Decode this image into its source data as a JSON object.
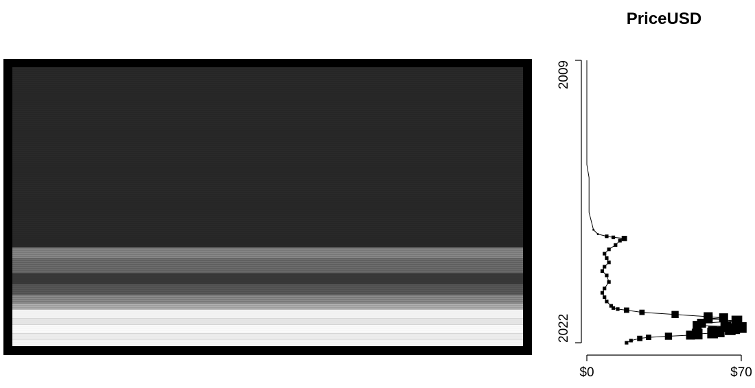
{
  "chart_data": {
    "type": "heatmap",
    "title": "PriceUSD",
    "xlabel": "",
    "ylabel": "",
    "x_ticks": [
      "$0",
      "$70"
    ],
    "xlim": [
      0,
      70
    ],
    "y_ticks": [
      "2009",
      "2022"
    ],
    "ylim": [
      2009,
      2022
    ],
    "colormap": "grayscale",
    "grid": false,
    "heatmap_bands": [
      {
        "from": 2009.0,
        "to": 2017.4,
        "shade": "#2a2a2a"
      },
      {
        "from": 2017.4,
        "to": 2017.9,
        "shade": "#8a8a8a"
      },
      {
        "from": 2017.9,
        "to": 2018.6,
        "shade": "#6e6e6e"
      },
      {
        "from": 2018.6,
        "to": 2019.1,
        "shade": "#3c3c3c"
      },
      {
        "from": 2019.1,
        "to": 2019.6,
        "shade": "#5a5a5a"
      },
      {
        "from": 2019.6,
        "to": 2020.0,
        "shade": "#8c8c8c"
      },
      {
        "from": 2020.0,
        "to": 2020.3,
        "shade": "#b5b5b5"
      },
      {
        "from": 2020.3,
        "to": 2020.7,
        "shade": "#f4f4f4"
      },
      {
        "from": 2020.7,
        "to": 2021.0,
        "shade": "#e6e6e6"
      },
      {
        "from": 2021.0,
        "to": 2021.4,
        "shade": "#fafafa"
      },
      {
        "from": 2021.4,
        "to": 2021.7,
        "shade": "#ececec"
      },
      {
        "from": 2021.7,
        "to": 2022.0,
        "shade": "#f8f8f8"
      }
    ],
    "series": [
      {
        "x": [
          0,
          0,
          0,
          0,
          0,
          0,
          0,
          0,
          0,
          1,
          1,
          1,
          1,
          2,
          3,
          5,
          9,
          12,
          17,
          15,
          13,
          10,
          8,
          9,
          10,
          8,
          7,
          9,
          10,
          8,
          7,
          8,
          9,
          11,
          12,
          14,
          18,
          25,
          40,
          55,
          62,
          55,
          68,
          52,
          50,
          63,
          70,
          67,
          65,
          57,
          60,
          57,
          50,
          47,
          37,
          28,
          24,
          20,
          18
        ],
        "y": [
          2009.0,
          2009.6,
          2010.2,
          2010.8,
          2011.4,
          2012.0,
          2012.6,
          2013.2,
          2013.8,
          2014.4,
          2015.0,
          2015.6,
          2016.0,
          2016.4,
          2016.8,
          2017.0,
          2017.1,
          2017.15,
          2017.2,
          2017.3,
          2017.5,
          2017.7,
          2017.9,
          2018.1,
          2018.3,
          2018.5,
          2018.7,
          2018.9,
          2019.2,
          2019.5,
          2019.7,
          2019.9,
          2020.1,
          2020.3,
          2020.4,
          2020.45,
          2020.5,
          2020.6,
          2020.7,
          2020.8,
          2020.85,
          2020.9,
          2021.0,
          2021.1,
          2021.2,
          2021.25,
          2021.3,
          2021.35,
          2021.4,
          2021.45,
          2021.5,
          2021.55,
          2021.6,
          2021.65,
          2021.7,
          2021.75,
          2021.8,
          2021.9,
          2022.0
        ],
        "marker_size": [
          0,
          0,
          0,
          0,
          0,
          0,
          0,
          0,
          0,
          0,
          0,
          0,
          0,
          0,
          1,
          1,
          2,
          2,
          3,
          2,
          2,
          2,
          2,
          2,
          2,
          2,
          2,
          2,
          2,
          2,
          2,
          2,
          2,
          2,
          2,
          2,
          3,
          3,
          4,
          5,
          5,
          5,
          6,
          5,
          5,
          6,
          6,
          6,
          6,
          5,
          6,
          6,
          6,
          5,
          4,
          3,
          3,
          2,
          2
        ]
      }
    ]
  }
}
